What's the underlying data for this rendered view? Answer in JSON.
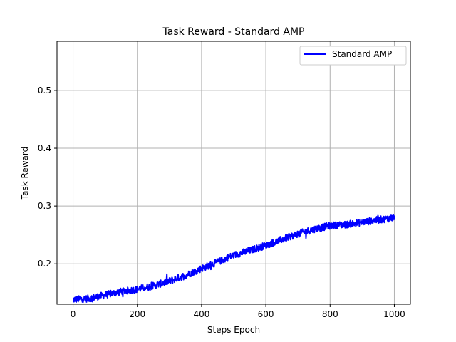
{
  "chart_data": {
    "type": "line",
    "title": "Task Reward - Standard AMP",
    "xlabel": "Steps Epoch",
    "ylabel": "Task Reward",
    "xlim": [
      -50,
      1050
    ],
    "ylim": [
      0.13,
      0.585
    ],
    "x_ticks": [
      0,
      200,
      400,
      600,
      800,
      1000
    ],
    "x_tick_labels": [
      "0",
      "200",
      "400",
      "600",
      "800",
      "1000"
    ],
    "y_ticks": [
      0.2,
      0.3,
      0.4,
      0.5
    ],
    "y_tick_labels": [
      "0.2",
      "0.3",
      "0.4",
      "0.5"
    ],
    "grid": true,
    "legend_position": "top-right",
    "series": [
      {
        "name": "Standard AMP",
        "color": "#0000ff",
        "x_range": [
          0,
          1000
        ],
        "trend_points": [
          [
            0,
            0.138
          ],
          [
            50,
            0.14
          ],
          [
            100,
            0.146
          ],
          [
            150,
            0.152
          ],
          [
            200,
            0.156
          ],
          [
            250,
            0.162
          ],
          [
            300,
            0.17
          ],
          [
            350,
            0.18
          ],
          [
            400,
            0.192
          ],
          [
            450,
            0.203
          ],
          [
            500,
            0.215
          ],
          [
            550,
            0.223
          ],
          [
            600,
            0.232
          ],
          [
            650,
            0.242
          ],
          [
            700,
            0.252
          ],
          [
            750,
            0.26
          ],
          [
            800,
            0.266
          ],
          [
            850,
            0.268
          ],
          [
            900,
            0.272
          ],
          [
            950,
            0.276
          ],
          [
            1000,
            0.28
          ]
        ],
        "noise_amplitude": 0.006
      }
    ]
  }
}
